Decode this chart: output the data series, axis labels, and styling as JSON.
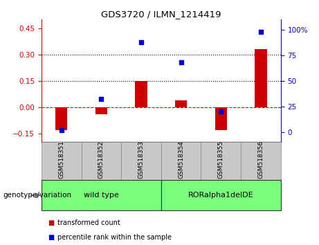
{
  "title": "GDS3720 / ILMN_1214419",
  "categories": [
    "GSM518351",
    "GSM518352",
    "GSM518353",
    "GSM518354",
    "GSM518355",
    "GSM518356"
  ],
  "red_values": [
    -0.13,
    -0.04,
    0.15,
    0.04,
    -0.13,
    0.33
  ],
  "blue_values_pct": [
    2,
    32,
    88,
    68,
    20,
    98
  ],
  "ylim_left": [
    -0.2,
    0.5
  ],
  "ylim_right": [
    -10,
    110
  ],
  "yticks_left": [
    -0.15,
    0.0,
    0.15,
    0.3,
    0.45
  ],
  "yticks_right": [
    0,
    25,
    50,
    75,
    100
  ],
  "hlines": [
    0.15,
    0.3
  ],
  "group1_label": "wild type",
  "group2_label": "RORalpha1delDE",
  "group1_indices": [
    0,
    1,
    2
  ],
  "group2_indices": [
    3,
    4,
    5
  ],
  "group1_color": "#7CFC7C",
  "group2_color": "#7CFC7C",
  "genotype_label": "genotype/variation",
  "legend_red": "transformed count",
  "legend_blue": "percentile rank within the sample",
  "bar_color": "#CC0000",
  "dot_color": "#0000CC",
  "xtick_bg": "#C8C8C8",
  "dotted_line_color": "#000000",
  "zero_line_color": "#CC0000",
  "left_axis_color": "#CC0000",
  "right_axis_color": "#0000CC",
  "bar_width": 0.3
}
